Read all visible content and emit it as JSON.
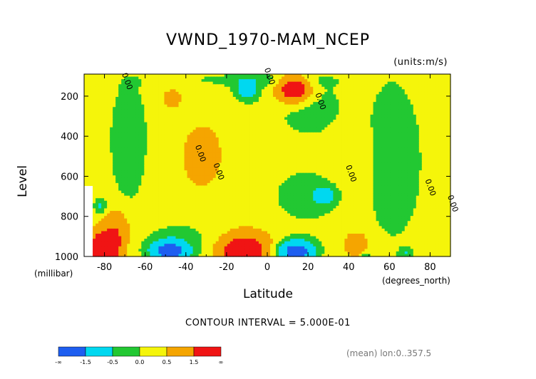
{
  "chart_data": {
    "type": "heatmap",
    "title": "VWND_1970-MAM_NCEP",
    "units": "(units:m/s)",
    "xlabel": "Latitude",
    "x_unit": "(degrees_north)",
    "ylabel": "Level",
    "y_unit": "(millibar)",
    "xlim": [
      -90,
      90
    ],
    "ylim": [
      1000,
      90
    ],
    "x_ticks": [
      "-80",
      "-60",
      "-40",
      "-20",
      "0",
      "20",
      "40",
      "60",
      "80"
    ],
    "x_tick_values": [
      -80,
      -60,
      -40,
      -20,
      0,
      20,
      40,
      60,
      80
    ],
    "y_ticks": [
      "200",
      "400",
      "600",
      "800",
      "1000"
    ],
    "y_tick_values": [
      200,
      400,
      600,
      800,
      1000
    ],
    "contour_labels": [
      {
        "text": "0.00",
        "lat": -70,
        "lev": 130
      },
      {
        "text": "0.00",
        "lat": 0,
        "lev": 105
      },
      {
        "text": "0.00",
        "lat": 25,
        "lev": 230
      },
      {
        "text": "0.00",
        "lat": -34,
        "lev": 490
      },
      {
        "text": "0.00",
        "lat": -25,
        "lev": 580
      },
      {
        "text": "0.00",
        "lat": 40,
        "lev": 590
      },
      {
        "text": "0.00",
        "lat": 79,
        "lev": 660
      },
      {
        "text": "0.00",
        "lat": 90,
        "lev": 740
      }
    ],
    "features": [
      {
        "lat": -80,
        "lev": 960,
        "value": 2.0,
        "desc": "strong positive near surface, far south"
      },
      {
        "lat": -12,
        "lev": 970,
        "value": 1.6,
        "desc": "positive maximum near surface"
      },
      {
        "lat": 13,
        "lev": 160,
        "value": 1.6,
        "desc": "positive maximum upper level"
      },
      {
        "lat": -48,
        "lev": 970,
        "value": -1.6,
        "desc": "negative minimum near surface"
      },
      {
        "lat": 13,
        "lev": 970,
        "value": -1.6,
        "desc": "negative minimum near surface"
      },
      {
        "lat": -10,
        "lev": 170,
        "value": -0.8,
        "desc": "negative upper level"
      }
    ],
    "colorbar": {
      "labels": [
        "-∞",
        "-1.5",
        "-0.5",
        "0.0",
        "0.5",
        "1.5",
        "∞"
      ],
      "colors": [
        "#1e5ef0",
        "#00d8f0",
        "#22c832",
        "#f5f50a",
        "#f5a500",
        "#f01414"
      ]
    },
    "contour_interval": "CONTOUR INTERVAL = 5.000E-01",
    "footnote": "(mean) lon:0..357.5"
  }
}
